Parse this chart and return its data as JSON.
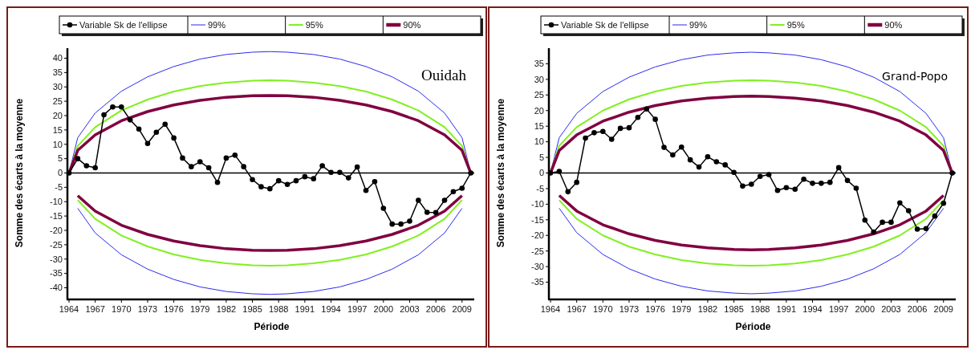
{
  "chart_data": [
    {
      "type": "line",
      "xlabel": "Période",
      "ylabel": "Somme des écarts à la moyenne",
      "annotations": [
        "Ouidah"
      ],
      "xlim": [
        1964,
        2010.4
      ],
      "xticks": [
        1964,
        1967,
        1970,
        1973,
        1976,
        1979,
        1982,
        1985,
        1988,
        1991,
        1994,
        1997,
        2000,
        2003,
        2006,
        2009
      ],
      "ylim": [
        -43.5,
        43.5
      ],
      "yticks": [
        -40,
        -35,
        -30,
        -25,
        -20,
        -15,
        -10,
        -5,
        0,
        5,
        10,
        15,
        20,
        25,
        30,
        35,
        40
      ],
      "legend": "top",
      "grid": false,
      "ref_lines": [
        {
          "axis": "y",
          "value": 0,
          "color": "#000000"
        }
      ],
      "series": [
        {
          "name": "Variable Sk de l'ellipse",
          "color": "#000000",
          "marker": "circle",
          "x": [
            1964,
            1965,
            1966,
            1967,
            1968,
            1969,
            1970,
            1971,
            1972,
            1973,
            1974,
            1975,
            1976,
            1977,
            1978,
            1979,
            1980,
            1981,
            1982,
            1983,
            1984,
            1985,
            1986,
            1987,
            1988,
            1989,
            1990,
            1991,
            1992,
            1993,
            1994,
            1995,
            1996,
            1997,
            1998,
            1999,
            2000,
            2001,
            2002,
            2003,
            2004,
            2005,
            2006,
            2007,
            2008,
            2009,
            2010
          ],
          "values": [
            0,
            5,
            2.5,
            1.8,
            20.3,
            23,
            23,
            18.5,
            15.3,
            10.3,
            14.2,
            17,
            12.2,
            5.2,
            2.2,
            3.9,
            1.8,
            -3.3,
            5.2,
            6.2,
            2.2,
            -2.3,
            -4.8,
            -5.5,
            -2.7,
            -4,
            -2.7,
            -1.3,
            -2,
            2.5,
            0.2,
            0.2,
            -1.7,
            2.1,
            -6.1,
            -3,
            -12.3,
            -17.8,
            -17.8,
            -16.8,
            -9.5,
            -13.7,
            -13.8,
            -9.5,
            -6.5,
            -5.3,
            0
          ]
        },
        {
          "name": "99%",
          "color": "#2b2bf0",
          "marker": "none",
          "x": [
            1964,
            1965,
            1967,
            1970,
            1973,
            1976,
            1979,
            1982,
            1985,
            1987,
            1989,
            1992,
            1995,
            1998,
            2001,
            2004,
            2007,
            2009,
            2010
          ],
          "values": [
            0,
            12.3,
            20.9,
            28.5,
            33.5,
            37.1,
            39.7,
            41.3,
            42.1,
            42.3,
            42.1,
            41.3,
            39.7,
            37.1,
            33.5,
            28.5,
            20.9,
            12.3,
            0
          ]
        },
        {
          "name": "95%",
          "color": "#80f020",
          "marker": "none",
          "x": [
            1964,
            1965,
            1967,
            1970,
            1973,
            1976,
            1979,
            1982,
            1985,
            1987,
            1989,
            1992,
            1995,
            1998,
            2001,
            2004,
            2007,
            2009,
            2010
          ],
          "values": [
            0,
            9.4,
            16,
            21.8,
            25.6,
            28.4,
            30.3,
            31.5,
            32.2,
            32.3,
            32.2,
            31.5,
            30.3,
            28.4,
            25.6,
            21.8,
            16,
            9.4,
            0
          ]
        },
        {
          "name": "90%",
          "color": "#800040",
          "marker": "none",
          "x": [
            1964,
            1965,
            1967,
            1970,
            1973,
            1976,
            1979,
            1982,
            1985,
            1987,
            1989,
            1992,
            1995,
            1998,
            2001,
            2004,
            2007,
            2009,
            2010
          ],
          "values": [
            0,
            7.9,
            13.3,
            18.2,
            21.4,
            23.7,
            25.3,
            26.4,
            26.9,
            27,
            26.9,
            26.4,
            25.3,
            23.7,
            21.4,
            18.2,
            13.3,
            7.9,
            0
          ]
        },
        {
          "color": "#2b2bf0",
          "marker": "none",
          "x": [
            1965,
            1967,
            1970,
            1973,
            1976,
            1979,
            1982,
            1985,
            1987,
            1989,
            1992,
            1995,
            1998,
            2001,
            2004,
            2007,
            2009
          ],
          "values": [
            -12.3,
            -20.9,
            -28.5,
            -33.5,
            -37.1,
            -39.7,
            -41.3,
            -42.1,
            -42.3,
            -42.1,
            -41.3,
            -39.7,
            -37.1,
            -33.5,
            -28.5,
            -20.9,
            -12.3
          ]
        },
        {
          "color": "#80f020",
          "marker": "none",
          "x": [
            1965,
            1967,
            1970,
            1973,
            1976,
            1979,
            1982,
            1985,
            1987,
            1989,
            1992,
            1995,
            1998,
            2001,
            2004,
            2007,
            2009
          ],
          "values": [
            -9.4,
            -16,
            -21.8,
            -25.6,
            -28.4,
            -30.3,
            -31.5,
            -32.2,
            -32.3,
            -32.2,
            -31.5,
            -30.3,
            -28.4,
            -25.6,
            -21.8,
            -16,
            -9.4
          ]
        },
        {
          "color": "#800040",
          "marker": "none",
          "x": [
            1965,
            1967,
            1970,
            1973,
            1976,
            1979,
            1982,
            1985,
            1987,
            1989,
            1992,
            1995,
            1998,
            2001,
            2004,
            2007,
            2009
          ],
          "values": [
            -7.9,
            -13.3,
            -18.2,
            -21.4,
            -23.7,
            -25.3,
            -26.4,
            -26.9,
            -27,
            -26.9,
            -26.4,
            -25.3,
            -23.7,
            -21.4,
            -18.2,
            -13.3,
            -7.9
          ]
        }
      ]
    },
    {
      "type": "line",
      "xlabel": "Période",
      "ylabel": "Somme des écarts à la moyenne",
      "annotations": [
        "Grand-Popo"
      ],
      "xlim": [
        1964,
        2010.4
      ],
      "xticks": [
        1964,
        1967,
        1970,
        1973,
        1976,
        1979,
        1982,
        1985,
        1988,
        1991,
        1994,
        1997,
        2000,
        2003,
        2006,
        2009
      ],
      "ylim": [
        -40,
        40
      ],
      "yticks": [
        -35,
        -30,
        -25,
        -20,
        -15,
        -10,
        -5,
        0,
        5,
        10,
        15,
        20,
        25,
        30,
        35
      ],
      "legend": "top",
      "grid": false,
      "ref_lines": [
        {
          "axis": "y",
          "value": 0,
          "color": "#000000"
        }
      ],
      "series": [
        {
          "name": "Variable Sk de l'ellipse",
          "color": "#000000",
          "marker": "circle",
          "x": [
            1964,
            1965,
            1966,
            1967,
            1968,
            1969,
            1970,
            1971,
            1972,
            1973,
            1974,
            1975,
            1976,
            1977,
            1978,
            1979,
            1980,
            1981,
            1982,
            1983,
            1984,
            1985,
            1986,
            1987,
            1988,
            1989,
            1990,
            1991,
            1992,
            1993,
            1994,
            1995,
            1996,
            1997,
            1998,
            1999,
            2000,
            2001,
            2002,
            2003,
            2004,
            2005,
            2006,
            2007,
            2008,
            2009,
            2010
          ],
          "values": [
            0,
            0.5,
            -6,
            -3,
            11.2,
            12.9,
            13.3,
            10.8,
            14.3,
            14.5,
            17.8,
            20.5,
            17.2,
            8.2,
            5.8,
            8.3,
            4.2,
            1.9,
            5.2,
            3.6,
            2.6,
            0.2,
            -4.2,
            -3.6,
            -1.1,
            -0.5,
            -5.6,
            -4.7,
            -5.2,
            -2,
            -3.3,
            -3.3,
            -3,
            1.7,
            -2.4,
            -4.9,
            -15.1,
            -18.9,
            -15.8,
            -15.8,
            -9.6,
            -12.1,
            -18,
            -17.8,
            -13.8,
            -9.7,
            0
          ]
        },
        {
          "name": "99%",
          "color": "#2b2bf0",
          "marker": "none",
          "x": [
            1964,
            1965,
            1967,
            1970,
            1973,
            1976,
            1979,
            1982,
            1985,
            1987,
            1989,
            1992,
            1995,
            1998,
            2001,
            2004,
            2007,
            2009,
            2010
          ],
          "values": [
            0,
            11.3,
            19.1,
            26.1,
            30.7,
            34,
            36.3,
            37.8,
            38.5,
            38.7,
            38.5,
            37.8,
            36.3,
            34,
            30.7,
            26.1,
            19.1,
            11.3,
            0
          ]
        },
        {
          "name": "95%",
          "color": "#80f020",
          "marker": "none",
          "x": [
            1964,
            1965,
            1967,
            1970,
            1973,
            1976,
            1979,
            1982,
            1985,
            1987,
            1989,
            1992,
            1995,
            1998,
            2001,
            2004,
            2007,
            2009,
            2010
          ],
          "values": [
            0,
            8.7,
            14.7,
            20,
            23.6,
            26.1,
            27.9,
            29,
            29.6,
            29.7,
            29.6,
            29,
            27.9,
            26.1,
            23.6,
            20,
            14.7,
            8.7,
            0
          ]
        },
        {
          "name": "90%",
          "color": "#800040",
          "marker": "none",
          "x": [
            1964,
            1965,
            1967,
            1970,
            1973,
            1976,
            1979,
            1982,
            1985,
            1987,
            1989,
            1992,
            1995,
            1998,
            2001,
            2004,
            2007,
            2009,
            2010
          ],
          "values": [
            0,
            7.2,
            12.2,
            16.6,
            19.5,
            21.6,
            23.1,
            24,
            24.5,
            24.6,
            24.5,
            24,
            23.1,
            21.6,
            19.5,
            16.6,
            12.2,
            7.2,
            0
          ]
        },
        {
          "color": "#2b2bf0",
          "marker": "none",
          "x": [
            1965,
            1967,
            1970,
            1973,
            1976,
            1979,
            1982,
            1985,
            1987,
            1989,
            1992,
            1995,
            1998,
            2001,
            2004,
            2007,
            2009
          ],
          "values": [
            -11.3,
            -19.1,
            -26.1,
            -30.7,
            -34,
            -36.3,
            -37.8,
            -38.5,
            -38.7,
            -38.5,
            -37.8,
            -36.3,
            -34,
            -30.7,
            -26.1,
            -19.1,
            -11.3
          ]
        },
        {
          "color": "#80f020",
          "marker": "none",
          "x": [
            1965,
            1967,
            1970,
            1973,
            1976,
            1979,
            1982,
            1985,
            1987,
            1989,
            1992,
            1995,
            1998,
            2001,
            2004,
            2007,
            2009
          ],
          "values": [
            -8.7,
            -14.7,
            -20,
            -23.6,
            -26.1,
            -27.9,
            -29,
            -29.6,
            -29.7,
            -29.6,
            -29,
            -27.9,
            -26.1,
            -23.6,
            -20,
            -14.7,
            -8.7
          ]
        },
        {
          "color": "#800040",
          "marker": "none",
          "x": [
            1965,
            1967,
            1970,
            1973,
            1976,
            1979,
            1982,
            1985,
            1987,
            1989,
            1992,
            1995,
            1998,
            2001,
            2004,
            2007,
            2009
          ],
          "values": [
            -7.2,
            -12.2,
            -16.6,
            -19.5,
            -21.6,
            -23.1,
            -24,
            -24.5,
            -24.6,
            -24.5,
            -24,
            -23.1,
            -21.6,
            -19.5,
            -16.6,
            -12.2,
            -7.2
          ]
        }
      ]
    }
  ]
}
